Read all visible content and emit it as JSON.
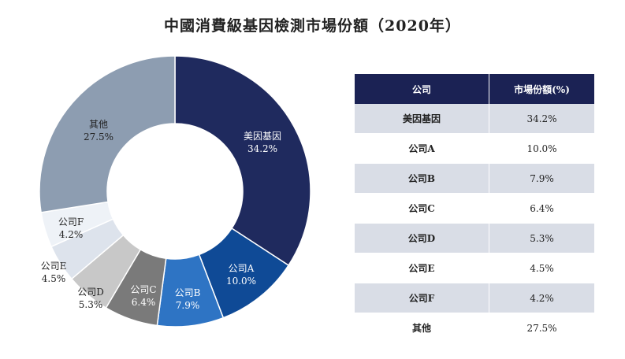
{
  "title": "中國消費級基因檢測市場份額（2020年）",
  "chart_data": {
    "type": "pie",
    "title": "中國消費級基因檢測市場份額（2020年）",
    "slices": [
      {
        "label": "美因基因",
        "value": 34.2,
        "value_label": "34.2%",
        "color": "#1f2a5e",
        "text_color": "#ffffff"
      },
      {
        "label": "公司A",
        "value": 10.0,
        "value_label": "10.0%",
        "color": "#0f4a96",
        "text_color": "#ffffff"
      },
      {
        "label": "公司B",
        "value": 7.9,
        "value_label": "7.9%",
        "color": "#2e74c4",
        "text_color": "#ffffff"
      },
      {
        "label": "公司C",
        "value": 6.4,
        "value_label": "6.4%",
        "color": "#7a7a7a",
        "text_color": "#ffffff"
      },
      {
        "label": "公司D",
        "value": 5.3,
        "value_label": "5.3%",
        "color": "#c8c8c8",
        "text_color": "#222222"
      },
      {
        "label": "公司E",
        "value": 4.5,
        "value_label": "4.5%",
        "color": "#dde3ec",
        "text_color": "#222222"
      },
      {
        "label": "公司F",
        "value": 4.2,
        "value_label": "4.2%",
        "color": "#eef2f7",
        "text_color": "#222222"
      },
      {
        "label": "其他",
        "value": 27.5,
        "value_label": "27.5%",
        "color": "#8d9db1",
        "text_color": "#222222"
      }
    ]
  },
  "table": {
    "headers": [
      "公司",
      "市場份額(%)"
    ],
    "rows": [
      {
        "company": "美因基因",
        "share": "34.2%"
      },
      {
        "company": "公司A",
        "share": "10.0%"
      },
      {
        "company": "公司B",
        "share": "7.9%"
      },
      {
        "company": "公司C",
        "share": "6.4%"
      },
      {
        "company": "公司D",
        "share": "5.3%"
      },
      {
        "company": "公司E",
        "share": "4.5%"
      },
      {
        "company": "公司F",
        "share": "4.2%"
      },
      {
        "company": "其他",
        "share": "27.5%"
      }
    ]
  }
}
